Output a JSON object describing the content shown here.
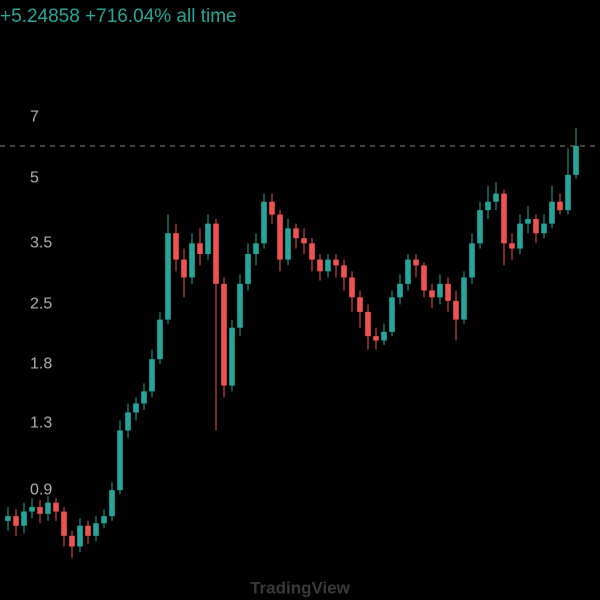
{
  "chart_data": {
    "type": "candlestick",
    "subtitle": "+5.24858 +716.04% all time",
    "watermark": "TradingView",
    "log_scale": true,
    "up_color": "#26a69a",
    "down_color": "#ef5350",
    "ylim": [
      0.58,
      7.7
    ],
    "yticks": [
      0.9,
      1.3,
      1.8,
      2.5,
      3.5,
      5,
      7
    ],
    "open": [
      0.76,
      0.78,
      0.74,
      0.8,
      0.82,
      0.79,
      0.84,
      0.8,
      0.7,
      0.66,
      0.74,
      0.7,
      0.75,
      0.78,
      0.9,
      1.25,
      1.38,
      1.45,
      1.55,
      1.85,
      2.3,
      3.7,
      3.2,
      2.9,
      3.5,
      3.3,
      3.9,
      2.8,
      1.6,
      2.2,
      2.8,
      3.3,
      3.5,
      4.4,
      4.1,
      3.2,
      3.8,
      3.6,
      3.5,
      3.2,
      3.0,
      3.2,
      3.1,
      2.9,
      2.6,
      2.4,
      2.1,
      2.05,
      2.15,
      2.6,
      2.8,
      3.2,
      3.1,
      2.7,
      2.6,
      2.8,
      2.55,
      2.3,
      2.9,
      3.5,
      4.2,
      4.4,
      4.6,
      3.5,
      3.4,
      3.9,
      4.0,
      3.7,
      3.9,
      4.4,
      4.2,
      5.1
    ],
    "high": [
      0.82,
      0.81,
      0.84,
      0.86,
      0.85,
      0.87,
      0.86,
      0.82,
      0.72,
      0.77,
      0.76,
      0.78,
      0.81,
      0.94,
      1.32,
      1.45,
      1.5,
      1.62,
      1.95,
      2.4,
      4.1,
      3.9,
      3.4,
      3.7,
      3.8,
      4.1,
      4.0,
      2.9,
      2.3,
      2.95,
      3.5,
      3.7,
      4.6,
      4.6,
      4.2,
      4.0,
      3.9,
      3.8,
      3.6,
      3.3,
      3.3,
      3.3,
      3.2,
      3.0,
      2.7,
      2.5,
      2.2,
      2.25,
      2.7,
      2.95,
      3.3,
      3.3,
      3.15,
      2.8,
      2.95,
      2.9,
      2.7,
      3.0,
      3.7,
      4.4,
      4.8,
      4.9,
      4.7,
      3.7,
      4.1,
      4.3,
      4.1,
      4.1,
      4.8,
      4.6,
      5.9,
      6.6
    ],
    "low": [
      0.72,
      0.7,
      0.71,
      0.77,
      0.75,
      0.76,
      0.76,
      0.66,
      0.62,
      0.64,
      0.67,
      0.68,
      0.73,
      0.76,
      0.88,
      1.2,
      1.32,
      1.4,
      1.5,
      1.8,
      2.25,
      3.0,
      2.6,
      2.8,
      3.1,
      3.2,
      1.25,
      1.5,
      1.55,
      2.1,
      2.7,
      3.1,
      3.4,
      3.9,
      3.0,
      3.1,
      3.4,
      3.3,
      3.0,
      2.85,
      2.9,
      2.9,
      2.7,
      2.4,
      2.2,
      1.95,
      1.95,
      2.0,
      2.1,
      2.5,
      2.7,
      2.9,
      2.6,
      2.45,
      2.5,
      2.4,
      2.05,
      2.25,
      2.8,
      3.4,
      4.0,
      4.2,
      3.1,
      3.2,
      3.3,
      3.7,
      3.5,
      3.6,
      3.8,
      4.1,
      4.1,
      5.0
    ],
    "close": [
      0.78,
      0.74,
      0.8,
      0.82,
      0.79,
      0.84,
      0.8,
      0.7,
      0.66,
      0.74,
      0.7,
      0.75,
      0.78,
      0.9,
      1.25,
      1.38,
      1.45,
      1.55,
      1.85,
      2.3,
      3.7,
      3.2,
      2.9,
      3.5,
      3.3,
      3.9,
      2.8,
      1.6,
      2.2,
      2.8,
      3.3,
      3.5,
      4.4,
      4.1,
      3.2,
      3.8,
      3.6,
      3.5,
      3.2,
      3.0,
      3.2,
      3.1,
      2.9,
      2.6,
      2.4,
      2.1,
      2.05,
      2.15,
      2.6,
      2.8,
      3.2,
      3.1,
      2.7,
      2.6,
      2.8,
      2.55,
      2.3,
      2.9,
      3.5,
      4.2,
      4.4,
      4.6,
      3.5,
      3.4,
      3.9,
      4.0,
      3.7,
      3.9,
      4.4,
      4.2,
      5.1,
      5.98
    ]
  }
}
